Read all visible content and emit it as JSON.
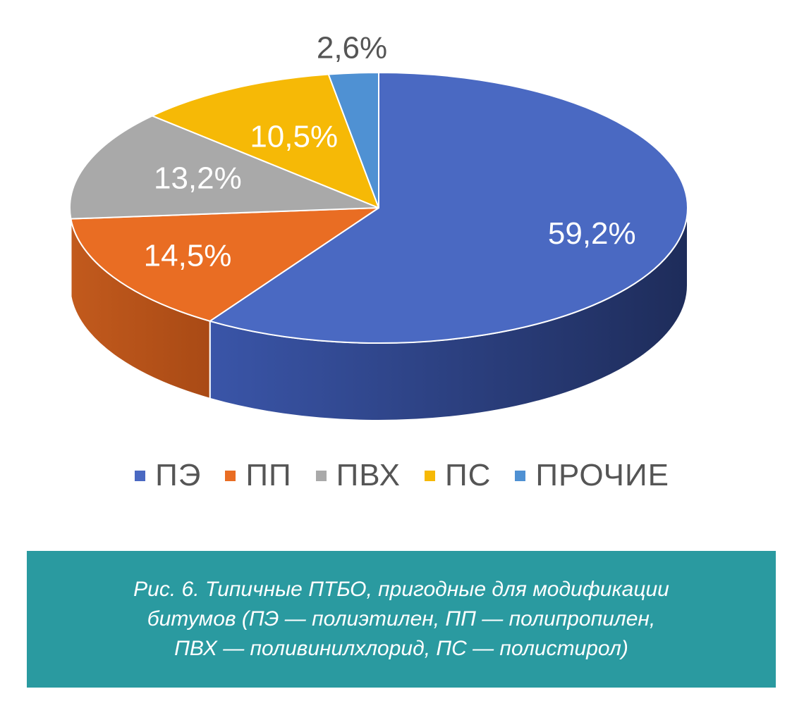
{
  "chart_data": {
    "type": "pie",
    "style": "3d",
    "categories": [
      "ПЭ",
      "ПП",
      "ПВХ",
      "ПС",
      "ПРОЧИЕ"
    ],
    "values": [
      59.2,
      14.5,
      13.2,
      10.5,
      2.6
    ],
    "data_labels": [
      "59,2%",
      "14,5%",
      "13,2%",
      "10,5%",
      "2,6%"
    ],
    "colors": [
      "#4a69c2",
      "#e96d23",
      "#a9a9a9",
      "#f6b906",
      "#4f91d3"
    ],
    "side_colors": [
      "#2f4384",
      "#b6521b",
      "#7a7a7a",
      "#b88a06",
      "#3a6da3"
    ],
    "legend_position": "bottom"
  },
  "legend": [
    {
      "label": "ПЭ",
      "color": "#4a69c2"
    },
    {
      "label": "ПП",
      "color": "#e96d23"
    },
    {
      "label": "ПВХ",
      "color": "#a9a9a9"
    },
    {
      "label": "ПС",
      "color": "#f6b906"
    },
    {
      "label": "ПРОЧИЕ",
      "color": "#4f91d3"
    }
  ],
  "caption": {
    "lines": [
      "Рис. 6. Типичные ПТБО, пригодные для модификации",
      "битумов (ПЭ — полиэтилен, ПП — полипропилен,",
      "ПВХ — поливинилхлорид, ПС — полистирол)"
    ],
    "background": "#2a9aa0"
  }
}
